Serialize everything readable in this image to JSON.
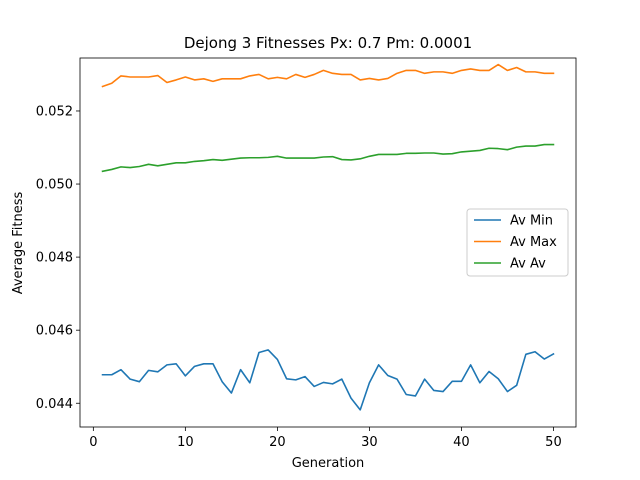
{
  "chart_data": {
    "type": "line",
    "title": "Dejong 3 Fitnesses Px: 0.7 Pm: 0.0001",
    "xlabel": "Generation",
    "ylabel": "Average Fitness",
    "xlim": [
      -1.45,
      52.45
    ],
    "ylim": [
      0.04335,
      0.05345
    ],
    "xticks": [
      0,
      10,
      20,
      30,
      40,
      50
    ],
    "yticks": [
      0.044,
      0.046,
      0.048,
      0.05,
      0.052
    ],
    "ytick_labels": [
      "0.044",
      "0.046",
      "0.048",
      "0.050",
      "0.052"
    ],
    "grid": false,
    "legend_position": "center-right",
    "x": [
      1,
      2,
      3,
      4,
      5,
      6,
      7,
      8,
      9,
      10,
      11,
      12,
      13,
      14,
      15,
      16,
      17,
      18,
      19,
      20,
      21,
      22,
      23,
      24,
      25,
      26,
      27,
      28,
      29,
      30,
      31,
      32,
      33,
      34,
      35,
      36,
      37,
      38,
      39,
      40,
      41,
      42,
      43,
      44,
      45,
      46,
      47,
      48,
      49,
      50
    ],
    "series": [
      {
        "name": "Av Min",
        "color": "#1f77b4",
        "values": [
          0.04478,
          0.04478,
          0.04492,
          0.04466,
          0.04459,
          0.0449,
          0.04486,
          0.04505,
          0.04508,
          0.04475,
          0.04501,
          0.04508,
          0.04508,
          0.04459,
          0.04428,
          0.04492,
          0.04456,
          0.04539,
          0.04546,
          0.0452,
          0.04467,
          0.04464,
          0.04473,
          0.04446,
          0.04457,
          0.04453,
          0.04466,
          0.04414,
          0.04382,
          0.04456,
          0.04505,
          0.04476,
          0.04466,
          0.04424,
          0.0442,
          0.04466,
          0.04435,
          0.04432,
          0.0446,
          0.0446,
          0.04505,
          0.04456,
          0.04487,
          0.04467,
          0.04432,
          0.04449,
          0.04534,
          0.04541,
          0.04521,
          0.04535
        ]
      },
      {
        "name": "Av Max",
        "color": "#ff7f0e",
        "values": [
          0.05267,
          0.05276,
          0.05296,
          0.05293,
          0.05293,
          0.05293,
          0.05297,
          0.05278,
          0.05285,
          0.05293,
          0.05285,
          0.05288,
          0.05281,
          0.05288,
          0.05288,
          0.05288,
          0.05296,
          0.053,
          0.05288,
          0.05292,
          0.05288,
          0.053,
          0.05292,
          0.053,
          0.05311,
          0.05303,
          0.053,
          0.053,
          0.05285,
          0.05289,
          0.05285,
          0.05289,
          0.05303,
          0.05311,
          0.05311,
          0.05303,
          0.05307,
          0.05307,
          0.05303,
          0.05311,
          0.05315,
          0.05311,
          0.05311,
          0.05327,
          0.05311,
          0.05319,
          0.05307,
          0.05307,
          0.05303,
          0.05303
        ]
      },
      {
        "name": "Av Av",
        "color": "#2ca02c",
        "values": [
          0.05035,
          0.0504,
          0.05047,
          0.05045,
          0.05048,
          0.05054,
          0.0505,
          0.05054,
          0.05058,
          0.05058,
          0.05062,
          0.05064,
          0.05067,
          0.05065,
          0.05068,
          0.05071,
          0.05072,
          0.05072,
          0.05073,
          0.05076,
          0.05071,
          0.05071,
          0.05071,
          0.05071,
          0.05074,
          0.05075,
          0.05067,
          0.05066,
          0.05069,
          0.05076,
          0.05081,
          0.05081,
          0.05081,
          0.05084,
          0.05084,
          0.05085,
          0.05085,
          0.05082,
          0.05083,
          0.05088,
          0.0509,
          0.05092,
          0.05098,
          0.05097,
          0.05094,
          0.05101,
          0.05104,
          0.05104,
          0.05108,
          0.05108
        ]
      }
    ]
  }
}
